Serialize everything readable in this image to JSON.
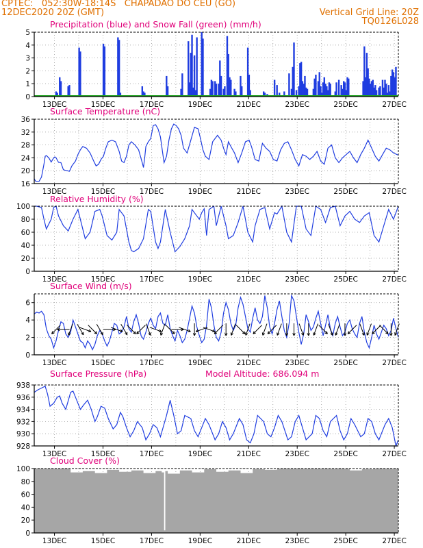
{
  "header": {
    "line1": "CPTEC:   052:30W-18:14S   CHAPADAO DO CEU (GO)",
    "line2": "12DEC2020 20Z (GMT)",
    "grid_note": "Vertical Grid Line: 20Z",
    "run_code": "TQ0126L028"
  },
  "colors": {
    "header": "#e07000",
    "title": "#e0007a",
    "series": "#1f3de0",
    "snow": "#1aa01a",
    "cloud": "#a6a6a6",
    "grid": "#9a9a9a"
  },
  "x_axis": {
    "ticks": [
      "13DEC",
      "15DEC",
      "17DEC",
      "19DEC",
      "21DEC",
      "23DEC",
      "25DEC",
      "27DEC"
    ]
  },
  "panels": [
    {
      "title": "Precipitation (blue) and Snow Fall (green) (mm/h)",
      "yticks": [
        "0",
        "1",
        "2",
        "3",
        "4",
        "5"
      ]
    },
    {
      "title": "Surface Temperature (nC)",
      "yticks": [
        "16",
        "20",
        "24",
        "28",
        "32",
        "36"
      ]
    },
    {
      "title": "Relative Humidity (%)",
      "yticks": [
        "0",
        "20",
        "40",
        "60",
        "80",
        "100"
      ]
    },
    {
      "title": "Surface Wind (m/s)",
      "yticks": [
        "0",
        "2",
        "4",
        "6"
      ]
    },
    {
      "title": "Surface Pressure (hPa)",
      "subtitle": "Model Altitude: 686.094 m",
      "yticks": [
        "928",
        "930",
        "932",
        "934",
        "936",
        "938"
      ]
    },
    {
      "title": "Cloud Cover (%)",
      "yticks": [
        "0",
        "20",
        "40",
        "60",
        "80",
        "100"
      ]
    }
  ],
  "chart_data": [
    {
      "type": "bar",
      "title": "Precipitation (blue) and Snow Fall (green) (mm/h)",
      "ylim": [
        0,
        5
      ],
      "x_days": [
        12.9,
        12.95,
        13.05,
        13.1,
        13.4,
        13.45,
        13.85,
        13.9,
        14.85,
        14.9,
        15.45,
        15.5,
        15.55,
        16.45,
        16.5,
        16.55,
        17.45,
        17.5,
        18.05,
        18.1,
        18.35,
        18.4,
        18.45,
        18.5,
        18.55,
        18.6,
        18.65,
        18.7,
        18.9,
        18.95,
        19.25,
        19.3,
        19.35,
        19.45,
        19.5,
        19.6,
        19.65,
        19.7,
        19.8,
        19.85,
        19.95,
        20.0,
        20.05,
        20.1,
        20.25,
        20.3,
        20.5,
        20.55,
        20.8,
        20.85,
        20.9,
        21.45,
        21.5,
        21.6,
        21.9,
        22.0,
        22.1,
        22.3,
        22.5,
        22.6,
        22.65,
        22.7,
        22.8,
        22.9,
        22.95,
        23.0,
        23.05,
        23.1,
        23.15,
        23.2,
        23.25,
        23.5,
        23.55,
        23.6,
        23.7,
        23.75,
        23.8,
        23.85,
        23.9,
        23.95,
        24.0,
        24.05,
        24.1,
        24.15,
        24.2,
        24.4,
        24.45,
        24.55,
        24.65,
        24.7,
        24.75,
        24.8,
        24.85,
        24.9,
        24.95,
        25.55,
        25.6,
        25.65,
        25.7,
        25.75,
        25.8,
        25.85,
        25.9,
        25.95,
        26.0,
        26.05,
        26.1,
        26.2,
        26.25,
        26.35,
        26.4,
        26.45,
        26.5,
        26.55,
        26.6,
        26.65,
        26.7,
        26.75,
        26.8,
        26.85,
        26.9
      ],
      "values": [
        0.4,
        0.3,
        1.5,
        1.2,
        0.8,
        0.9,
        3.8,
        3.5,
        4.1,
        3.9,
        4.6,
        4.4,
        0.3,
        0.8,
        0.4,
        0.3,
        1.6,
        0.8,
        0.6,
        1.8,
        4.3,
        1.1,
        3.4,
        4.8,
        0.7,
        3.2,
        0.5,
        4.6,
        5.0,
        4.5,
        0.6,
        1.3,
        1.2,
        1.2,
        1.0,
        1.0,
        2.8,
        1.6,
        0.6,
        0.8,
        4.7,
        3.3,
        1.5,
        1.3,
        0.6,
        0.4,
        1.6,
        0.8,
        3.8,
        1.7,
        0.5,
        0.4,
        0.3,
        0.2,
        1.3,
        0.9,
        0.3,
        0.4,
        1.8,
        0.6,
        2.3,
        4.2,
        0.5,
        0.8,
        2.6,
        2.7,
        1.2,
        1.0,
        1.6,
        0.7,
        0.6,
        0.6,
        1.4,
        1.7,
        1.2,
        1.9,
        0.8,
        0.3,
        1.1,
        1.5,
        1.0,
        0.8,
        0.5,
        1.1,
        1.0,
        0.4,
        1.1,
        1.3,
        0.9,
        0.6,
        1.2,
        1.1,
        0.5,
        1.5,
        1.4,
        1.2,
        3.9,
        1.5,
        3.4,
        2.2,
        1.4,
        1.0,
        1.2,
        1.3,
        0.7,
        0.9,
        0.5,
        0.7,
        0.8,
        1.3,
        0.7,
        1.3,
        1.0,
        0.3,
        0.9,
        0.4,
        1.6,
        2.1,
        1.9,
        1.5,
        2.3
      ]
    },
    {
      "type": "line",
      "title": "Surface Temperature (nC)",
      "ylim": [
        16,
        36
      ],
      "x_days": [
        12.0,
        12.05,
        12.1,
        12.2,
        12.3,
        12.4,
        12.45,
        12.5,
        12.6,
        12.7,
        12.8,
        12.85,
        12.9,
        13.0,
        13.1,
        13.2,
        13.35,
        13.45,
        13.55,
        13.7,
        13.8,
        13.9,
        14.0,
        14.15,
        14.3,
        14.45,
        14.55,
        14.65,
        14.75,
        14.85,
        14.95,
        15.05,
        15.2,
        15.35,
        15.5,
        15.6,
        15.7,
        15.8,
        15.9,
        16.0,
        16.15,
        16.3,
        16.45,
        16.5,
        16.55,
        16.6,
        16.7,
        16.8,
        16.9,
        17.0,
        17.1,
        17.2,
        17.3,
        17.35,
        17.45,
        17.55,
        17.65,
        17.75,
        17.85,
        17.95,
        18.05,
        18.15,
        18.3,
        18.45,
        18.6,
        18.75,
        18.85,
        18.95,
        19.05,
        19.2,
        19.35,
        19.55,
        19.7,
        19.8,
        19.9,
        20.0,
        20.1,
        20.25,
        20.4,
        20.55,
        20.7,
        20.85,
        20.95,
        21.1,
        21.25,
        21.4,
        21.55,
        21.7,
        21.85,
        22.0,
        22.15,
        22.3,
        22.45,
        22.6,
        22.75,
        22.9,
        23.05,
        23.2,
        23.35,
        23.5,
        23.65,
        23.8,
        23.95,
        24.1,
        24.25,
        24.4,
        24.55,
        24.7,
        24.85,
        25.0,
        25.15,
        25.3,
        25.45,
        25.6,
        25.75,
        25.9,
        26.05,
        26.2,
        26.35,
        26.5,
        26.65,
        26.8,
        27.0
      ],
      "values": [
        17.5,
        16.8,
        16.7,
        16.7,
        18.0,
        22.0,
        24.5,
        24.7,
        24.0,
        22.7,
        24.0,
        24.3,
        24.0,
        22.6,
        22.5,
        20.3,
        20.0,
        19.8,
        21.5,
        23.0,
        25.0,
        26.5,
        27.5,
        27.0,
        25.5,
        23.0,
        21.5,
        22.0,
        23.5,
        24.5,
        27.0,
        29.0,
        29.5,
        29.0,
        26.0,
        23.0,
        22.5,
        24.5,
        28.0,
        29.0,
        28.0,
        26.5,
        22.5,
        21.0,
        24.0,
        27.5,
        29.0,
        30.0,
        34.0,
        34.3,
        33.0,
        30.5,
        25.0,
        22.5,
        24.5,
        29.5,
        33.0,
        34.5,
        34.0,
        33.0,
        31.0,
        27.0,
        25.5,
        29.5,
        33.5,
        33.0,
        30.0,
        26.5,
        24.5,
        23.5,
        29.0,
        31.0,
        29.5,
        27.0,
        25.0,
        29.0,
        27.5,
        25.5,
        22.5,
        25.5,
        29.0,
        29.5,
        27.5,
        23.5,
        23.0,
        28.5,
        27.0,
        26.0,
        23.5,
        23.0,
        26.5,
        28.5,
        29.0,
        26.5,
        23.5,
        21.5,
        25.0,
        24.5,
        23.5,
        24.5,
        26.0,
        23.0,
        22.0,
        27.0,
        28.0,
        24.0,
        22.5,
        24.0,
        25.0,
        26.0,
        24.0,
        22.5,
        25.0,
        27.0,
        29.5,
        27.0,
        24.5,
        23.0,
        25.0,
        27.0,
        26.5,
        25.5,
        24.8
      ]
    },
    {
      "type": "line",
      "title": "Relative Humidity (%)",
      "ylim": [
        0,
        100
      ],
      "x_days": [
        12.0,
        12.1,
        12.3,
        12.4,
        12.5,
        12.7,
        12.8,
        12.9,
        13.0,
        13.2,
        13.4,
        13.6,
        13.8,
        14.0,
        14.1,
        14.3,
        14.5,
        14.7,
        14.8,
        15.0,
        15.2,
        15.4,
        15.5,
        15.7,
        15.9,
        16.0,
        16.1,
        16.3,
        16.5,
        16.7,
        16.8,
        17.0,
        17.1,
        17.2,
        17.4,
        17.6,
        17.8,
        18.0,
        18.2,
        18.4,
        18.5,
        18.7,
        18.8,
        18.9,
        19.0,
        19.1,
        19.2,
        19.4,
        19.5,
        19.7,
        19.9,
        20.0,
        20.2,
        20.4,
        20.6,
        20.8,
        21.0,
        21.1,
        21.3,
        21.5,
        21.7,
        21.9,
        22.0,
        22.2,
        22.4,
        22.6,
        22.8,
        23.0,
        23.2,
        23.4,
        23.6,
        23.8,
        24.0,
        24.2,
        24.4,
        24.6,
        24.8,
        25.0,
        25.2,
        25.4,
        25.6,
        25.8,
        26.0,
        26.2,
        26.4,
        26.6,
        26.8,
        27.0
      ],
      "values": [
        100,
        100,
        98,
        80,
        65,
        80,
        98,
        100,
        85,
        70,
        62,
        80,
        95,
        65,
        50,
        60,
        92,
        95,
        85,
        55,
        48,
        60,
        95,
        85,
        45,
        32,
        30,
        35,
        50,
        95,
        92,
        45,
        35,
        45,
        95,
        60,
        30,
        38,
        50,
        70,
        95,
        85,
        80,
        90,
        96,
        55,
        95,
        100,
        70,
        100,
        70,
        50,
        55,
        75,
        100,
        60,
        45,
        70,
        95,
        98,
        65,
        90,
        88,
        100,
        60,
        45,
        100,
        100,
        65,
        55,
        100,
        95,
        75,
        98,
        100,
        70,
        85,
        92,
        80,
        75,
        85,
        90,
        55,
        45,
        70,
        95,
        80,
        100
      ]
    },
    {
      "type": "line",
      "title": "Surface Wind (m/s)",
      "ylim": [
        0,
        7
      ],
      "x_days": [
        12.0,
        12.1,
        12.2,
        12.3,
        12.4,
        12.5,
        12.6,
        12.7,
        12.8,
        12.9,
        13.0,
        13.1,
        13.2,
        13.3,
        13.4,
        13.5,
        13.6,
        13.7,
        13.8,
        13.9,
        14.0,
        14.1,
        14.2,
        14.3,
        14.4,
        14.5,
        14.6,
        14.7,
        14.8,
        14.9,
        15.0,
        15.1,
        15.2,
        15.3,
        15.4,
        15.5,
        15.6,
        15.7,
        15.8,
        15.9,
        16.0,
        16.1,
        16.2,
        16.3,
        16.4,
        16.5,
        16.6,
        16.7,
        16.8,
        16.9,
        17.0,
        17.1,
        17.2,
        17.3,
        17.4,
        17.5,
        17.6,
        17.7,
        17.8,
        17.9,
        18.0,
        18.1,
        18.2,
        18.3,
        18.4,
        18.5,
        18.6,
        18.7,
        18.8,
        18.9,
        19.0,
        19.1,
        19.2,
        19.3,
        19.4,
        19.5,
        19.6,
        19.7,
        19.8,
        19.9,
        20.0,
        20.1,
        20.2,
        20.3,
        20.4,
        20.5,
        20.6,
        20.7,
        20.8,
        20.9,
        21.0,
        21.1,
        21.2,
        21.3,
        21.4,
        21.5,
        21.6,
        21.7,
        21.8,
        21.9,
        22.0,
        22.1,
        22.2,
        22.3,
        22.4,
        22.5,
        22.6,
        22.7,
        22.8,
        22.9,
        23.0,
        23.1,
        23.2,
        23.3,
        23.4,
        23.5,
        23.6,
        23.7,
        23.8,
        23.9,
        24.0,
        24.1,
        24.2,
        24.3,
        24.4,
        24.5,
        24.6,
        24.7,
        24.8,
        24.9,
        25.0,
        25.1,
        25.2,
        25.3,
        25.4,
        25.5,
        25.6,
        25.7,
        25.8,
        25.9,
        26.0,
        26.1,
        26.2,
        26.3,
        26.4,
        26.5,
        26.6,
        26.7,
        26.8,
        26.9,
        27.0
      ],
      "values": [
        4.7,
        4.9,
        4.8,
        5.0,
        4.6,
        3.0,
        2.2,
        1.8,
        0.8,
        1.6,
        2.8,
        3.8,
        3.6,
        2.4,
        2.0,
        2.6,
        4.0,
        3.2,
        2.4,
        1.6,
        1.4,
        0.8,
        1.6,
        1.2,
        0.6,
        1.2,
        2.2,
        2.8,
        2.4,
        1.6,
        1.0,
        1.6,
        2.6,
        3.6,
        3.4,
        2.4,
        2.6,
        3.2,
        4.4,
        3.0,
        2.6,
        3.8,
        4.6,
        3.6,
        2.2,
        1.8,
        2.6,
        3.6,
        4.2,
        3.4,
        3.0,
        4.4,
        4.8,
        3.6,
        3.4,
        4.6,
        3.0,
        2.2,
        1.6,
        2.8,
        2.2,
        1.4,
        1.8,
        2.8,
        4.2,
        5.6,
        4.8,
        3.2,
        2.2,
        1.4,
        1.8,
        3.4,
        6.4,
        5.4,
        3.4,
        2.0,
        1.6,
        2.6,
        4.8,
        6.0,
        5.2,
        3.6,
        2.8,
        3.4,
        5.4,
        6.6,
        5.8,
        4.4,
        3.0,
        2.6,
        4.2,
        5.4,
        4.0,
        3.6,
        4.4,
        6.8,
        5.4,
        3.2,
        2.4,
        3.6,
        5.2,
        6.2,
        4.4,
        2.8,
        2.0,
        3.6,
        6.8,
        6.2,
        4.4,
        2.6,
        1.2,
        2.4,
        4.6,
        3.8,
        2.8,
        3.2,
        4.2,
        5.0,
        3.6,
        2.2,
        3.4,
        4.6,
        3.0,
        2.2,
        3.6,
        4.4,
        3.2,
        2.2,
        2.6,
        3.6,
        4.0,
        3.0,
        2.4,
        2.0,
        3.6,
        4.4,
        2.6,
        1.4,
        0.8,
        2.0,
        3.4,
        2.4,
        1.8,
        2.6,
        3.4,
        3.0,
        2.2,
        2.8,
        4.2,
        3.0,
        2.0
      ]
    },
    {
      "type": "line",
      "title": "Surface Pressure (hPa)",
      "ylim": [
        928,
        938
      ],
      "x_days": [
        12.0,
        12.15,
        12.3,
        12.45,
        12.55,
        12.65,
        12.8,
        12.95,
        13.05,
        13.15,
        13.3,
        13.5,
        13.6,
        13.75,
        13.9,
        14.05,
        14.2,
        14.35,
        14.5,
        14.6,
        14.75,
        14.9,
        15.05,
        15.25,
        15.4,
        15.55,
        15.65,
        15.8,
        15.95,
        16.1,
        16.25,
        16.45,
        16.6,
        16.75,
        16.9,
        17.05,
        17.2,
        17.45,
        17.6,
        17.75,
        17.9,
        18.05,
        18.2,
        18.45,
        18.6,
        18.75,
        18.9,
        19.05,
        19.2,
        19.45,
        19.6,
        19.75,
        19.9,
        20.05,
        20.2,
        20.45,
        20.6,
        20.75,
        20.9,
        21.05,
        21.2,
        21.45,
        21.6,
        21.75,
        21.9,
        22.05,
        22.2,
        22.45,
        22.6,
        22.75,
        22.9,
        23.05,
        23.2,
        23.45,
        23.6,
        23.75,
        23.9,
        24.05,
        24.2,
        24.45,
        24.6,
        24.75,
        24.9,
        25.05,
        25.2,
        25.45,
        25.6,
        25.75,
        25.9,
        26.05,
        26.2,
        26.45,
        26.6,
        26.75,
        26.9,
        27.0
      ],
      "values": [
        936.8,
        937.2,
        937.5,
        937.8,
        936.5,
        934.5,
        935.0,
        936.0,
        936.2,
        935.0,
        934.0,
        936.8,
        937.0,
        935.5,
        934.0,
        934.8,
        935.5,
        934.0,
        932.0,
        932.8,
        934.5,
        934.2,
        932.5,
        930.8,
        931.5,
        933.5,
        932.8,
        931.0,
        929.5,
        930.5,
        932.0,
        931.0,
        929.0,
        930.0,
        931.5,
        931.0,
        929.5,
        933.0,
        935.5,
        933.0,
        930.0,
        930.5,
        933.0,
        932.5,
        930.5,
        929.5,
        931.0,
        932.5,
        931.5,
        929.0,
        930.0,
        932.0,
        931.0,
        929.0,
        930.0,
        932.5,
        931.5,
        929.0,
        928.5,
        930.0,
        933.0,
        932.0,
        930.0,
        929.5,
        931.0,
        933.0,
        932.0,
        929.0,
        929.5,
        932.0,
        933.0,
        931.0,
        929.0,
        930.0,
        933.0,
        932.5,
        930.5,
        929.5,
        932.0,
        933.0,
        930.5,
        929.0,
        930.0,
        932.5,
        931.5,
        929.5,
        930.0,
        932.5,
        932.0,
        930.0,
        929.0,
        931.5,
        932.5,
        931.0,
        928.0,
        929.0
      ]
    },
    {
      "type": "area",
      "title": "Cloud Cover (%)",
      "ylim": [
        0,
        100
      ],
      "x_days": [
        12.0,
        12.5,
        13.0,
        13.5,
        14.0,
        14.5,
        15.0,
        15.5,
        16.0,
        16.5,
        17.0,
        17.25,
        17.35,
        17.4,
        17.5,
        18.0,
        18.5,
        19.0,
        19.5,
        20.0,
        20.5,
        21.0,
        21.5,
        22.0,
        22.5,
        23.0,
        23.5,
        24.0,
        24.5,
        25.0,
        25.5,
        26.0,
        26.5,
        27.0
      ],
      "values": [
        100,
        100,
        100,
        94,
        96,
        93,
        98,
        95,
        97,
        93,
        96,
        94,
        4,
        96,
        92,
        97,
        94,
        99,
        95,
        97,
        93,
        99,
        98,
        100,
        100,
        100,
        100,
        100,
        100,
        97,
        99,
        100,
        100,
        100
      ]
    }
  ]
}
